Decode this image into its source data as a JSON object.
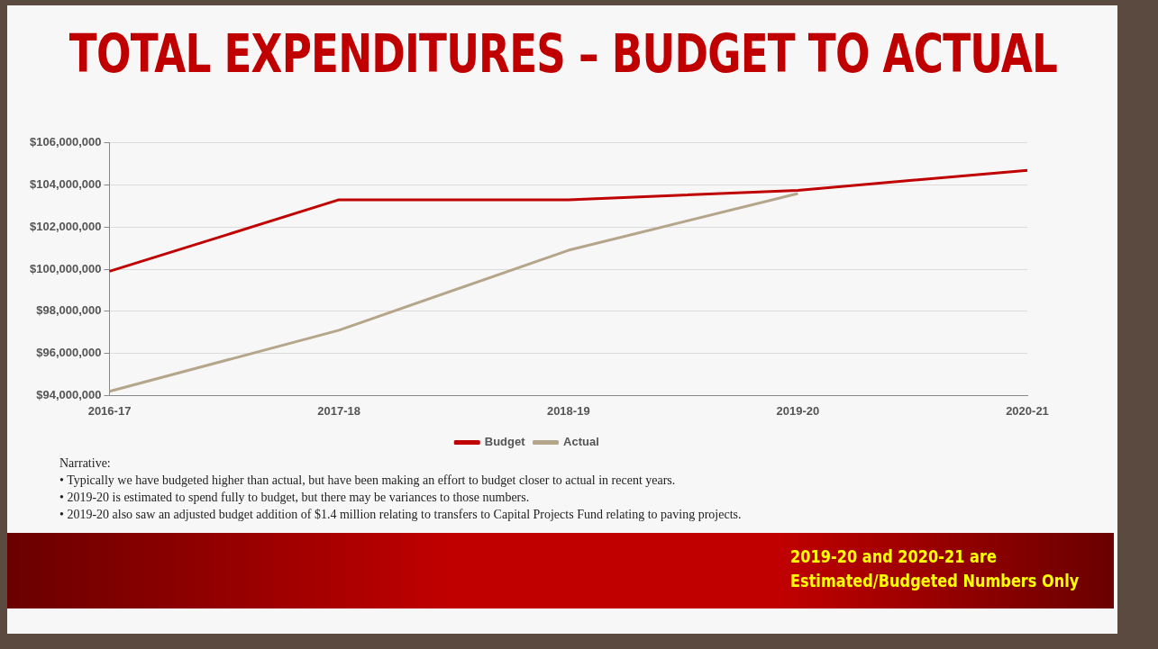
{
  "chart_data": {
    "type": "line",
    "title": "TOTAL EXPENDITURES – BUDGET TO ACTUAL",
    "categories": [
      "2016-17",
      "2017-18",
      "2018-19",
      "2019-20",
      "2020-21"
    ],
    "series": [
      {
        "name": "Budget",
        "color": "#c00000",
        "values": [
          99900000,
          103300000,
          103300000,
          103750000,
          104700000
        ]
      },
      {
        "name": "Actual",
        "color": "#b5a58a",
        "values": [
          94200000,
          97100000,
          100900000,
          103600000,
          null
        ]
      }
    ],
    "ylim": [
      94000000,
      106000000
    ],
    "yticks": [
      {
        "value": 94000000,
        "label": "$94,000,000"
      },
      {
        "value": 96000000,
        "label": "$96,000,000"
      },
      {
        "value": 98000000,
        "label": "$98,000,000"
      },
      {
        "value": 100000000,
        "label": "$100,000,000"
      },
      {
        "value": 102000000,
        "label": "$102,000,000"
      },
      {
        "value": 104000000,
        "label": "$104,000,000"
      },
      {
        "value": 106000000,
        "label": "$106,000,000"
      }
    ],
    "grid": "y",
    "legend": "bottom",
    "marker": "none",
    "line_style": "solid",
    "annotations": [
      "Narrative:",
      "• Typically we have budgeted higher than actual, but have been making an effort to budget closer to actual in recent years.",
      "• 2019-20 is estimated to spend fully to budget, but there may be variances to those numbers.",
      "• 2019-20 also saw an adjusted budget addition of $1.4 million relating to transfers to Capital Projects Fund relating to paving projects.",
      "2019-20 and 2020-21 are Estimated/Budgeted Numbers Only"
    ]
  }
}
